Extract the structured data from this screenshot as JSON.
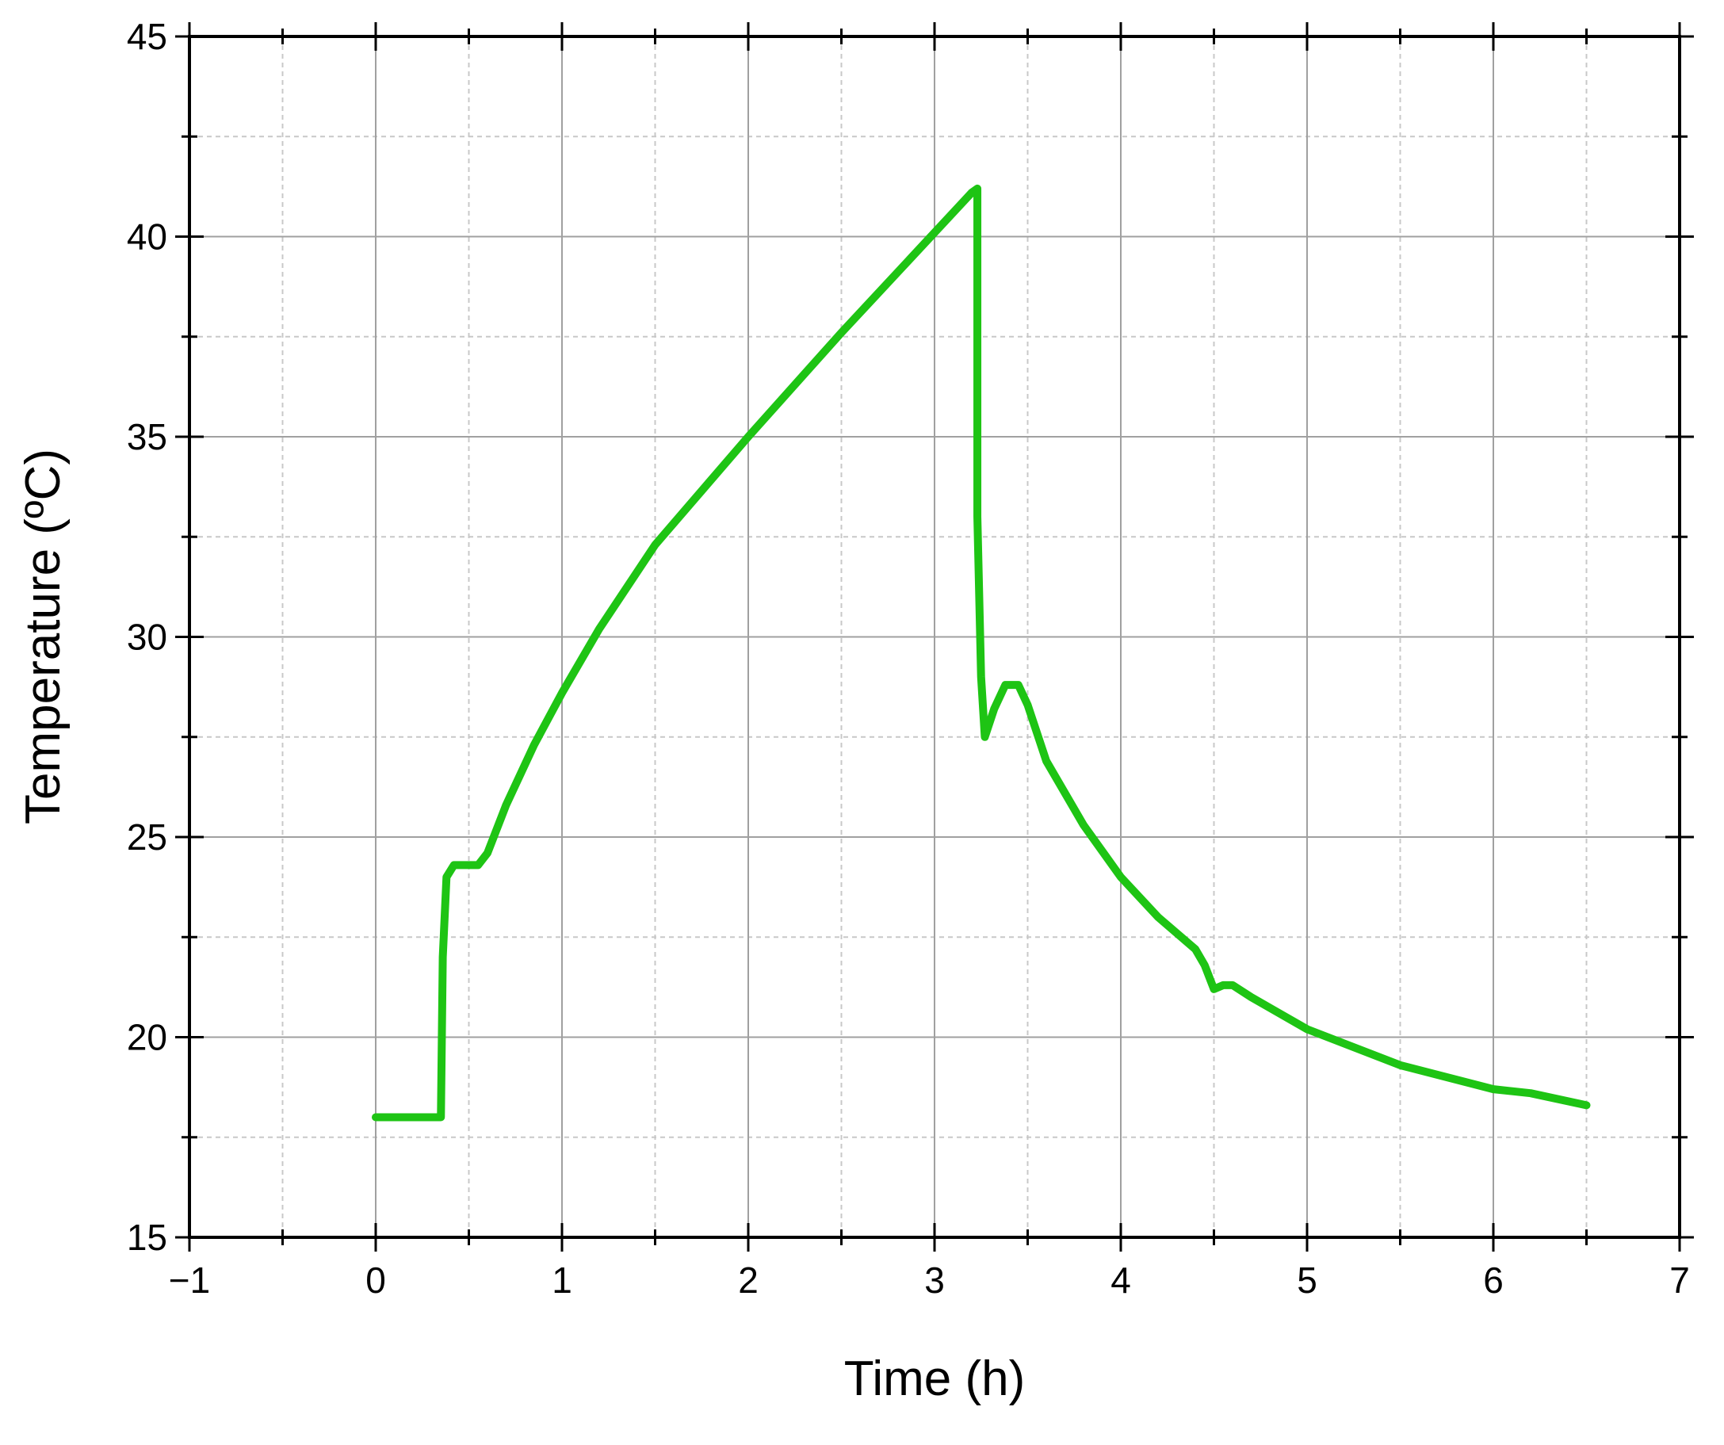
{
  "chart_data": {
    "type": "line",
    "x_label": "Time (h)",
    "y_label": "Temperature (ºC)",
    "xlim": [
      -1,
      7
    ],
    "xticks": [
      {
        "value": -1,
        "label": "−1"
      },
      0,
      1,
      2,
      3,
      4,
      5,
      6,
      7
    ],
    "ylim": [
      15,
      45
    ],
    "yticks": [
      15,
      20,
      25,
      30,
      35,
      40,
      45
    ],
    "grid": true,
    "series": [
      {
        "color": "#1ec414",
        "x": [
          0,
          0.35,
          0.36,
          0.38,
          0.42,
          0.55,
          0.6,
          0.7,
          0.85,
          1,
          1.2,
          1.5,
          2,
          2.5,
          3,
          3.2,
          3.23,
          3.23,
          3.25,
          3.27,
          3.32,
          3.38,
          3.45,
          3.5,
          3.6,
          3.8,
          4,
          4.2,
          4.4,
          4.45,
          4.5,
          4.55,
          4.6,
          4.7,
          5,
          5.5,
          6,
          6.2,
          6.5
        ],
        "values": [
          18,
          18,
          22,
          24,
          24.3,
          24.3,
          24.6,
          25.8,
          27.3,
          28.6,
          30.2,
          32.3,
          35,
          37.6,
          40.1,
          41.1,
          41.2,
          33,
          29,
          27.5,
          28.2,
          28.8,
          28.8,
          28.3,
          26.9,
          25.3,
          24,
          23,
          22.2,
          21.8,
          21.2,
          21.3,
          21.3,
          21,
          20.2,
          19.3,
          18.7,
          18.6,
          18.3
        ]
      }
    ]
  }
}
